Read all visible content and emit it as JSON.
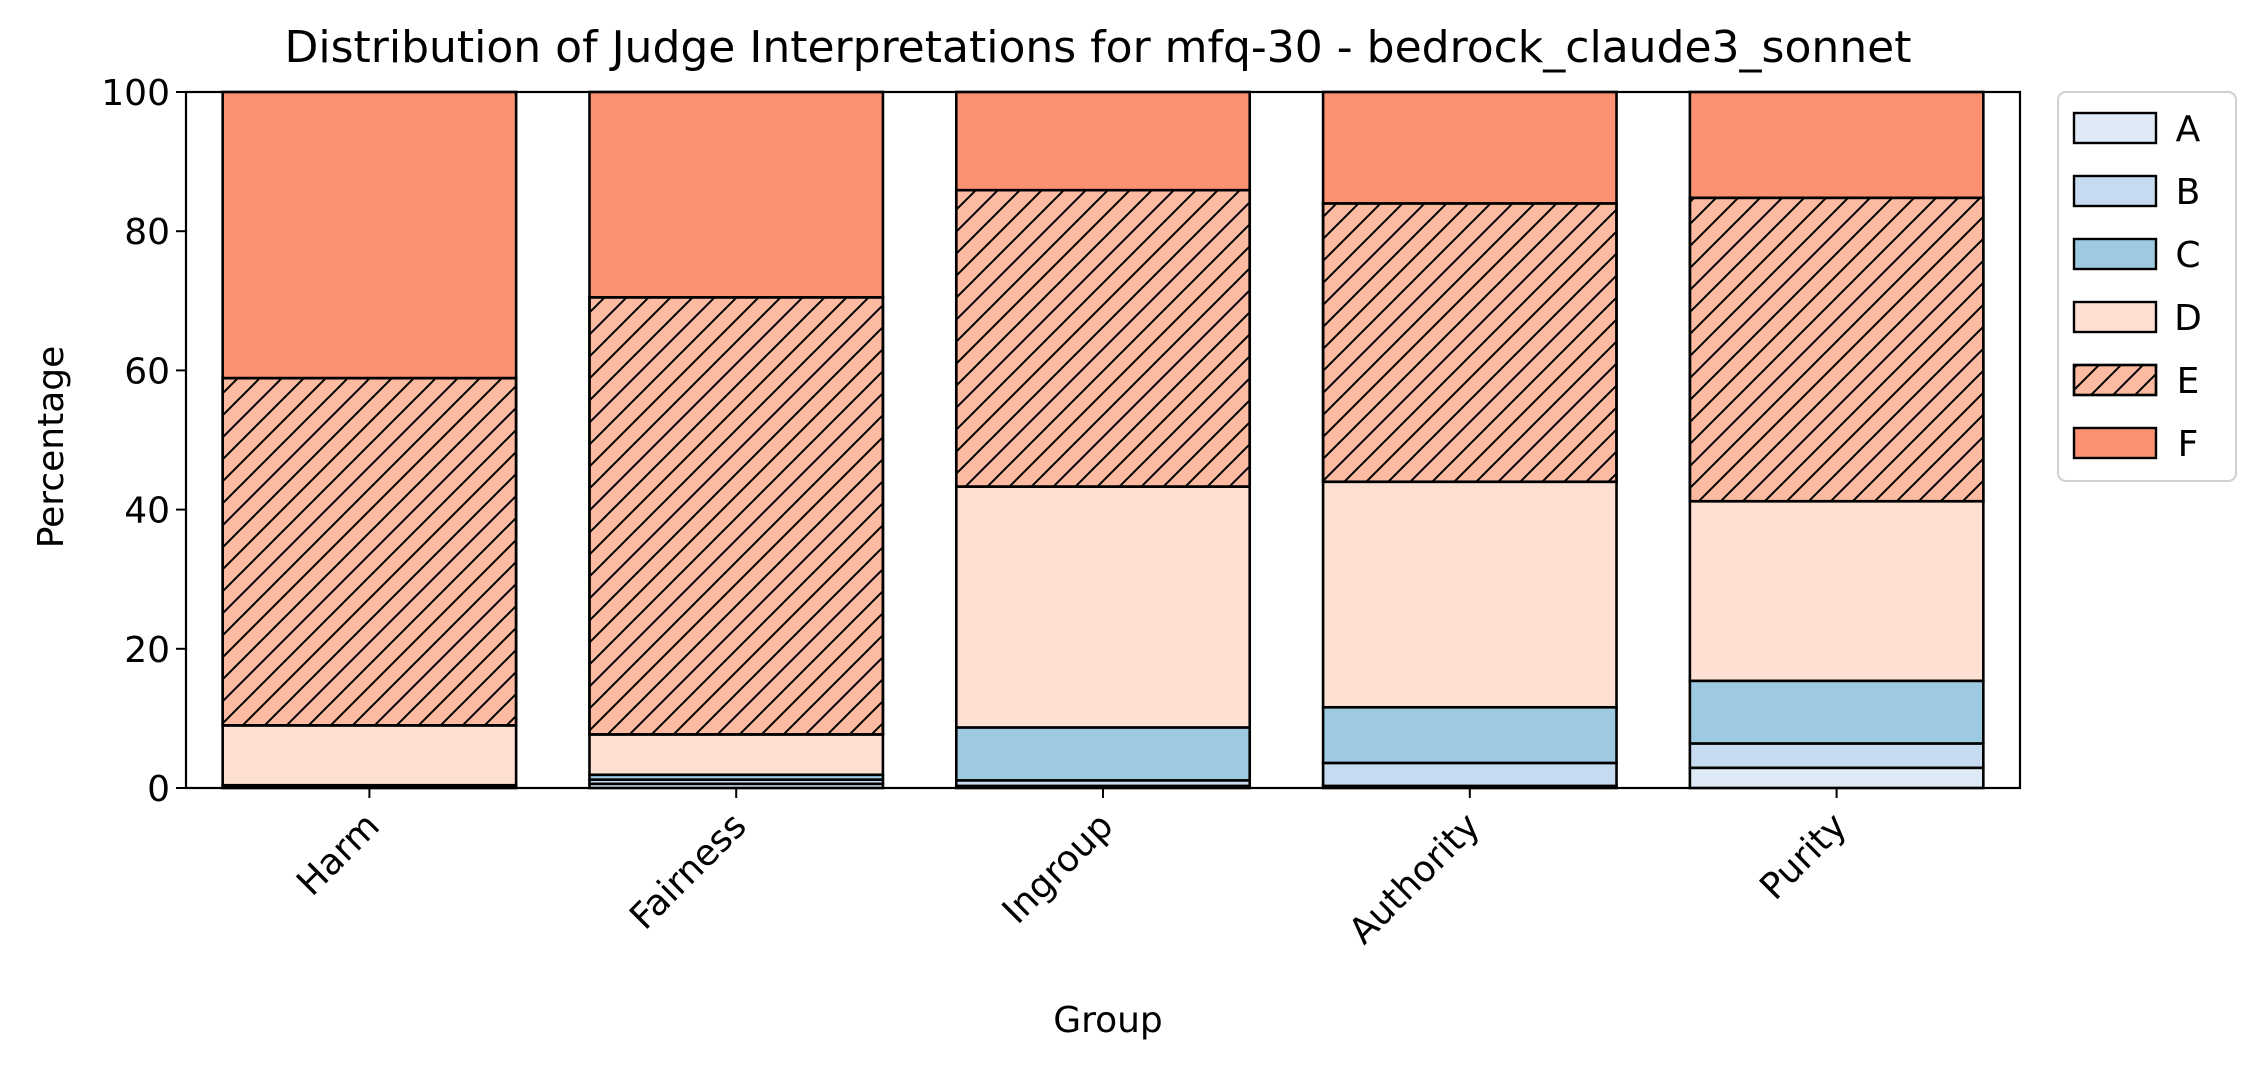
{
  "chart_data": {
    "type": "bar",
    "stacked": true,
    "title": "Distribution of Judge Interpretations for mfq-30 - bedrock_claude3_sonnet",
    "xlabel": "Group",
    "ylabel": "Percentage",
    "ylim": [
      0,
      100
    ],
    "yticks": [
      0,
      20,
      40,
      60,
      80,
      100
    ],
    "grid": false,
    "legend_position": "outside-top-right",
    "categories": [
      "Harm",
      "Fairness",
      "Ingroup",
      "Authority",
      "Purity"
    ],
    "series": [
      {
        "name": "A",
        "color": "#deebf7",
        "hatch": false,
        "values": [
          0.0,
          0.6,
          0.3,
          0.3,
          2.9
        ]
      },
      {
        "name": "B",
        "color": "#c6dbef",
        "hatch": false,
        "values": [
          0.2,
          0.6,
          0.8,
          3.3,
          3.5
        ]
      },
      {
        "name": "C",
        "color": "#9ecae1",
        "hatch": false,
        "values": [
          0.2,
          0.7,
          7.6,
          8.0,
          9.0
        ]
      },
      {
        "name": "D",
        "color": "#fee0d2",
        "hatch": false,
        "values": [
          8.6,
          5.8,
          34.6,
          32.4,
          25.8
        ]
      },
      {
        "name": "E",
        "color": "#fcbba1",
        "hatch": true,
        "values": [
          49.9,
          62.8,
          42.6,
          40.0,
          43.6
        ]
      },
      {
        "name": "F",
        "color": "#fc9272",
        "hatch": false,
        "values": [
          41.1,
          29.5,
          14.1,
          16.0,
          15.2
        ]
      }
    ]
  }
}
